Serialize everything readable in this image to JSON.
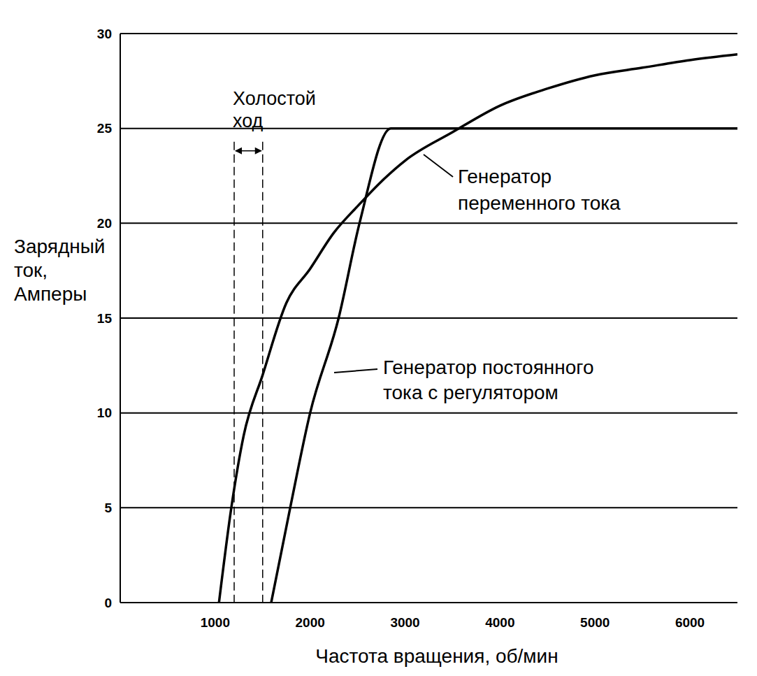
{
  "chart_data": {
    "type": "line",
    "xlabel": "Частота вращения, об/мин",
    "ylabel": "Зарядный ток, Амперы",
    "xlim": [
      0,
      6500
    ],
    "xticks": [
      1000,
      2000,
      3000,
      4000,
      5000,
      6000
    ],
    "ylim": [
      0,
      30
    ],
    "yticks": [
      0,
      5,
      10,
      15,
      20,
      25,
      30
    ],
    "grid": "y",
    "series": [
      {
        "name": "Генератор переменного тока",
        "color": "#000000",
        "x": [
          1040,
          1170,
          1300,
          1500,
          1750,
          2000,
          2250,
          2500,
          2750,
          3000,
          3500,
          4000,
          4500,
          5000,
          5500,
          6000,
          6500
        ],
        "values": [
          0,
          5,
          8.8,
          12,
          15.8,
          17.6,
          19.5,
          20.9,
          22.2,
          23.3,
          24.8,
          26.2,
          27.1,
          27.8,
          28.2,
          28.6,
          28.9
        ]
      },
      {
        "name": "Генератор постоянного тока с регулятором",
        "color": "#000000",
        "x": [
          1590,
          1790,
          2000,
          2300,
          2520,
          2850,
          6500
        ],
        "values": [
          0,
          5,
          10,
          15,
          20,
          25,
          25
        ]
      }
    ],
    "annotations": [
      {
        "text": "Холостой ход",
        "x": [
          1200,
          1500
        ]
      }
    ]
  }
}
